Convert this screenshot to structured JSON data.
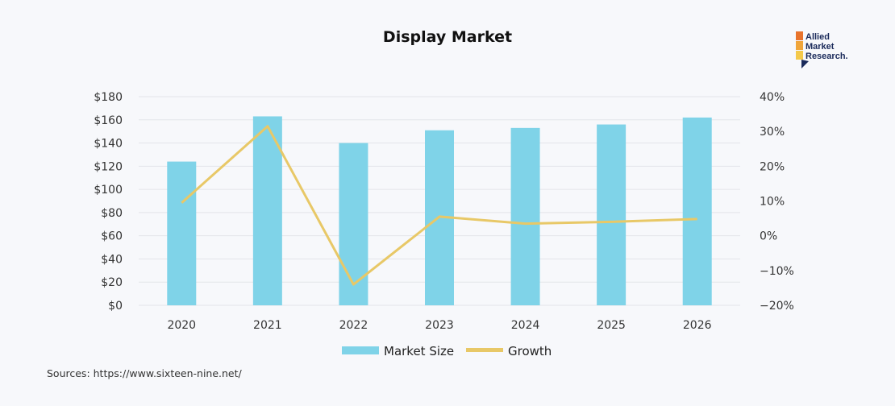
{
  "chart_data": {
    "type": "bar",
    "title": "Display Market",
    "categories": [
      "2020",
      "2021",
      "2022",
      "2023",
      "2024",
      "2025",
      "2026"
    ],
    "series": [
      {
        "name": "Market Size",
        "type": "bar",
        "axis": "left",
        "color": "#7fd3e8",
        "values": [
          124,
          163,
          140,
          151,
          153,
          156,
          162
        ]
      },
      {
        "name": "Growth",
        "type": "line",
        "axis": "right",
        "color": "#e8c867",
        "values": [
          9.5,
          31.5,
          -14,
          5.5,
          3.5,
          4,
          4.8
        ]
      }
    ],
    "y_left": {
      "min": 0,
      "max": 180,
      "step": 20,
      "ticks": [
        "$0",
        "$20",
        "$40",
        "$60",
        "$80",
        "$100",
        "$120",
        "$140",
        "$160",
        "$180"
      ]
    },
    "y_right": {
      "min": -20,
      "max": 40,
      "step": 10,
      "ticks": [
        "−20%",
        "−10%",
        "0%",
        "10%",
        "20%",
        "30%",
        "40%"
      ]
    },
    "grid": true,
    "legend_position": "bottom-center"
  },
  "source": "Sources: https://www.sixteen-nine.net/",
  "logo": {
    "lines": [
      "Allied",
      "Market",
      "Research."
    ],
    "colors": [
      "#e8732c",
      "#f0a53a",
      "#f4c94a",
      "#1a2a5a"
    ]
  }
}
